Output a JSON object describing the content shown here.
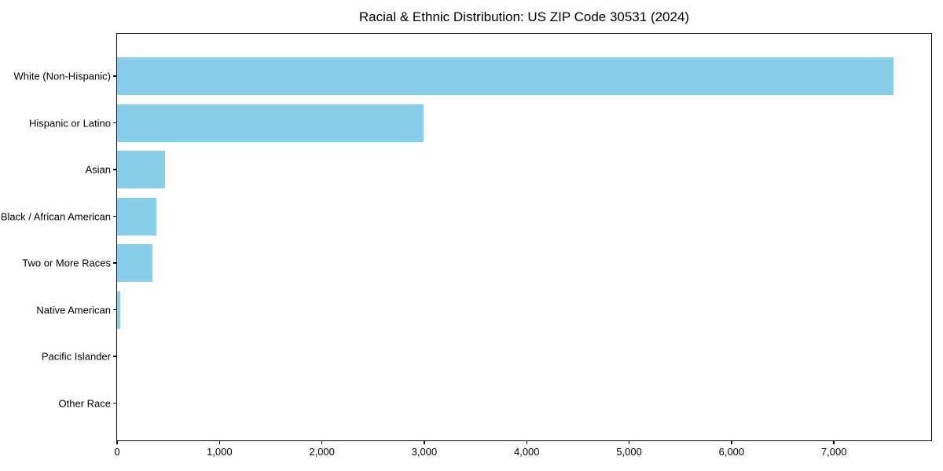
{
  "title": "Racial & Ethnic Distribution: US ZIP Code 30531 (2024)",
  "chart_data": {
    "type": "bar",
    "orientation": "horizontal",
    "title": "Racial & Ethnic Distribution: US ZIP Code 30531 (2024)",
    "categories": [
      "White (Non-Hispanic)",
      "Hispanic or Latino",
      "Asian",
      "Black / African American",
      "Two or More Races",
      "Native American",
      "Pacific Islander",
      "Other Race"
    ],
    "values": [
      7580,
      2990,
      465,
      385,
      345,
      30,
      0,
      0
    ],
    "xlabel": "",
    "ylabel": "",
    "xlim": [
      0,
      7950
    ],
    "x_ticks": [
      0,
      1000,
      2000,
      3000,
      4000,
      5000,
      6000,
      7000
    ],
    "x_tick_labels": [
      "0",
      "1,000",
      "2,000",
      "3,000",
      "4,000",
      "5,000",
      "6,000",
      "7,000"
    ],
    "bar_color": "#87CEEB",
    "axis_color": "#000000",
    "background_color": "#ffffff",
    "grid": false,
    "legend": null
  }
}
